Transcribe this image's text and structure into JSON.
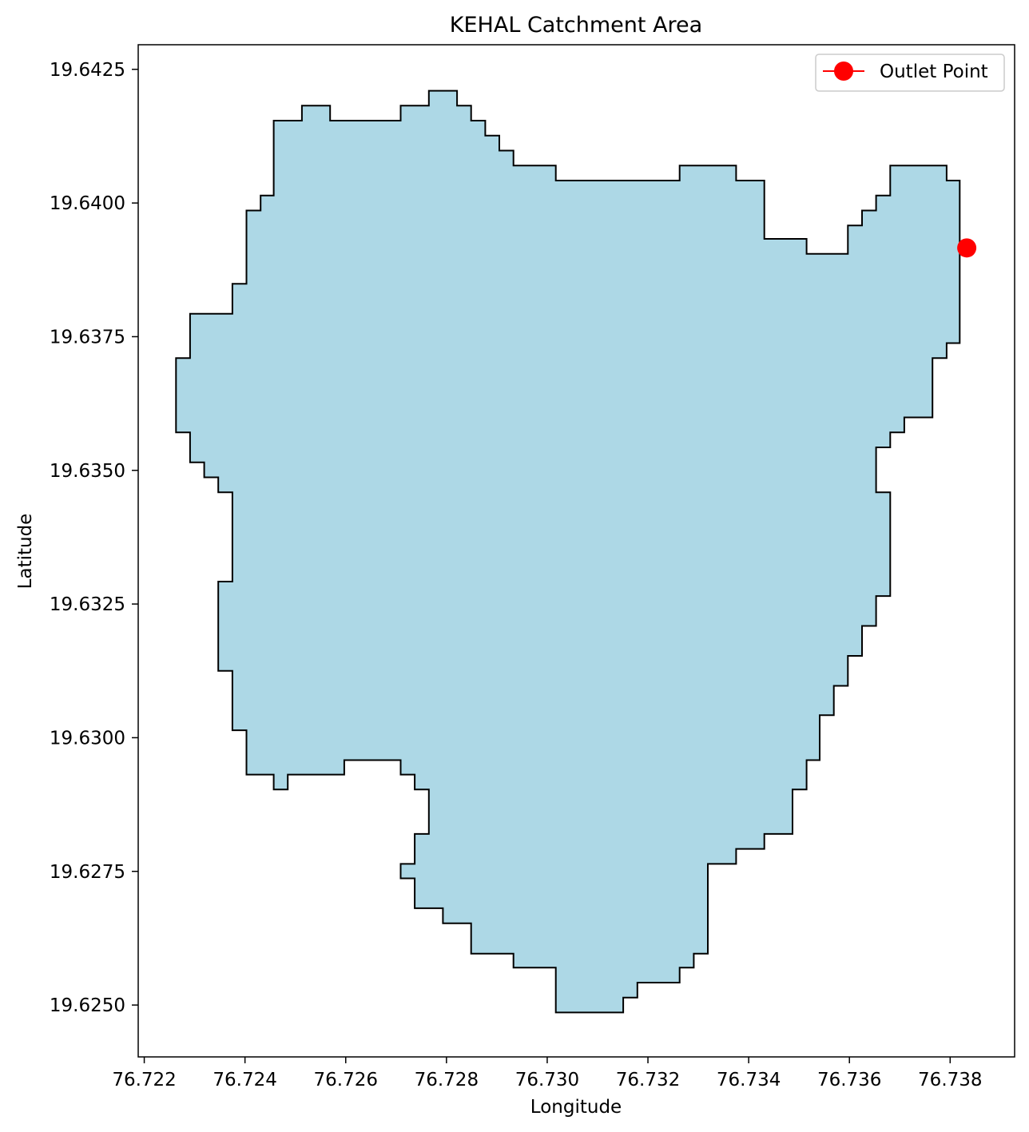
{
  "chart_data": {
    "type": "area",
    "title": "KEHAL Catchment Area",
    "xlabel": "Longitude",
    "ylabel": "Latitude",
    "xlim": [
      76.72188,
      76.73928
    ],
    "ylim": [
      19.62403,
      19.64296
    ],
    "xticks": [
      76.722,
      76.724,
      76.726,
      76.728,
      76.73,
      76.732,
      76.734,
      76.736,
      76.738
    ],
    "xtick_labels": [
      "76.722",
      "76.724",
      "76.726",
      "76.728",
      "76.730",
      "76.732",
      "76.734",
      "76.736",
      "76.738"
    ],
    "yticks": [
      19.625,
      19.6275,
      19.63,
      19.6325,
      19.635,
      19.6375,
      19.64,
      19.6425
    ],
    "ytick_labels": [
      "19.6250",
      "19.6275",
      "19.6300",
      "19.6325",
      "19.6350",
      "19.6375",
      "19.6400",
      "19.6425"
    ],
    "grid": false,
    "legend": {
      "position": "top-right",
      "entries": [
        {
          "label": "Outlet Point",
          "color": "#ff0000",
          "marker": "circle"
        }
      ]
    },
    "catchment": {
      "fill_color": "#add8e6",
      "edge_color": "#000000",
      "boundary": [
        [
          76.72457,
          19.64154
        ],
        [
          76.72513,
          19.64154
        ],
        [
          76.72513,
          19.64182
        ],
        [
          76.72569,
          19.64182
        ],
        [
          76.72569,
          19.64154
        ],
        [
          76.72709,
          19.64154
        ],
        [
          76.72709,
          19.64182
        ],
        [
          76.72765,
          19.64182
        ],
        [
          76.72765,
          19.6421
        ],
        [
          76.72821,
          19.6421
        ],
        [
          76.72821,
          19.64182
        ],
        [
          76.72849,
          19.64182
        ],
        [
          76.72849,
          19.64154
        ],
        [
          76.72877,
          19.64154
        ],
        [
          76.72877,
          19.64126
        ],
        [
          76.72905,
          19.64126
        ],
        [
          76.72905,
          19.64098
        ],
        [
          76.72933,
          19.64098
        ],
        [
          76.72933,
          19.6407
        ],
        [
          76.73017,
          19.6407
        ],
        [
          76.73017,
          19.64042
        ],
        [
          76.73263,
          19.64042
        ],
        [
          76.73263,
          19.6407
        ],
        [
          76.73375,
          19.6407
        ],
        [
          76.73375,
          19.64042
        ],
        [
          76.73431,
          19.64042
        ],
        [
          76.73431,
          19.63933
        ],
        [
          76.73515,
          19.63933
        ],
        [
          76.73515,
          19.63905
        ],
        [
          76.73597,
          19.63905
        ],
        [
          76.73597,
          19.63958
        ],
        [
          76.73625,
          19.63958
        ],
        [
          76.73625,
          19.63986
        ],
        [
          76.73653,
          19.63986
        ],
        [
          76.73653,
          19.64014
        ],
        [
          76.73681,
          19.64014
        ],
        [
          76.73681,
          19.6407
        ],
        [
          76.73793,
          19.6407
        ],
        [
          76.73793,
          19.64042
        ],
        [
          76.73819,
          19.64042
        ],
        [
          76.73819,
          19.63738
        ],
        [
          76.73793,
          19.63738
        ],
        [
          76.73793,
          19.6371
        ],
        [
          76.73765,
          19.6371
        ],
        [
          76.73765,
          19.63599
        ],
        [
          76.73709,
          19.63599
        ],
        [
          76.73709,
          19.63571
        ],
        [
          76.73681,
          19.63571
        ],
        [
          76.73681,
          19.63543
        ],
        [
          76.73653,
          19.63543
        ],
        [
          76.73653,
          19.63459
        ],
        [
          76.73681,
          19.63459
        ],
        [
          76.73681,
          19.63265
        ],
        [
          76.73653,
          19.63265
        ],
        [
          76.73653,
          19.63209
        ],
        [
          76.73625,
          19.63209
        ],
        [
          76.73625,
          19.63153
        ],
        [
          76.73597,
          19.63153
        ],
        [
          76.73597,
          19.63097
        ],
        [
          76.73569,
          19.63097
        ],
        [
          76.73569,
          19.63042
        ],
        [
          76.73541,
          19.63042
        ],
        [
          76.73541,
          19.62958
        ],
        [
          76.73515,
          19.62958
        ],
        [
          76.73515,
          19.62903
        ],
        [
          76.73487,
          19.62903
        ],
        [
          76.73487,
          19.6282
        ],
        [
          76.73431,
          19.6282
        ],
        [
          76.73431,
          19.62792
        ],
        [
          76.73375,
          19.62792
        ],
        [
          76.73375,
          19.62764
        ],
        [
          76.73319,
          19.62764
        ],
        [
          76.73319,
          19.62596
        ],
        [
          76.73291,
          19.62596
        ],
        [
          76.73291,
          19.6257
        ],
        [
          76.73263,
          19.6257
        ],
        [
          76.73263,
          19.62542
        ],
        [
          76.73179,
          19.62542
        ],
        [
          76.73179,
          19.62514
        ],
        [
          76.73151,
          19.62514
        ],
        [
          76.73151,
          19.62486
        ],
        [
          76.73017,
          19.62486
        ],
        [
          76.73017,
          19.6257
        ],
        [
          76.72933,
          19.6257
        ],
        [
          76.72933,
          19.62596
        ],
        [
          76.72849,
          19.62596
        ],
        [
          76.72849,
          19.62653
        ],
        [
          76.72793,
          19.62653
        ],
        [
          76.72793,
          19.62681
        ],
        [
          76.72737,
          19.62681
        ],
        [
          76.72737,
          19.62737
        ],
        [
          76.72709,
          19.62737
        ],
        [
          76.72709,
          19.62764
        ],
        [
          76.72737,
          19.62764
        ],
        [
          76.72737,
          19.6282
        ],
        [
          76.72765,
          19.6282
        ],
        [
          76.72765,
          19.62903
        ],
        [
          76.72737,
          19.62903
        ],
        [
          76.72737,
          19.62931
        ],
        [
          76.72709,
          19.62931
        ],
        [
          76.72709,
          19.62958
        ],
        [
          76.72597,
          19.62958
        ],
        [
          76.72597,
          19.62931
        ],
        [
          76.72485,
          19.62931
        ],
        [
          76.72485,
          19.62903
        ],
        [
          76.72457,
          19.62903
        ],
        [
          76.72457,
          19.62931
        ],
        [
          76.72403,
          19.62931
        ],
        [
          76.72403,
          19.63014
        ],
        [
          76.72375,
          19.63014
        ],
        [
          76.72375,
          19.63125
        ],
        [
          76.72347,
          19.63125
        ],
        [
          76.72347,
          19.63292
        ],
        [
          76.72375,
          19.63292
        ],
        [
          76.72375,
          19.63459
        ],
        [
          76.72347,
          19.63459
        ],
        [
          76.72347,
          19.63487
        ],
        [
          76.72319,
          19.63487
        ],
        [
          76.72319,
          19.63515
        ],
        [
          76.72291,
          19.63515
        ],
        [
          76.72291,
          19.63571
        ],
        [
          76.72263,
          19.63571
        ],
        [
          76.72263,
          19.6371
        ],
        [
          76.72291,
          19.6371
        ],
        [
          76.72291,
          19.63793
        ],
        [
          76.72375,
          19.63793
        ],
        [
          76.72375,
          19.63849
        ],
        [
          76.72403,
          19.63849
        ],
        [
          76.72403,
          19.63986
        ],
        [
          76.72431,
          19.63986
        ],
        [
          76.72431,
          19.64014
        ],
        [
          76.72457,
          19.64014
        ]
      ]
    },
    "series": [
      {
        "name": "Outlet Point",
        "type": "scatter",
        "color": "#ff0000",
        "x": [
          76.73833
        ],
        "y": [
          19.63916
        ]
      }
    ]
  }
}
